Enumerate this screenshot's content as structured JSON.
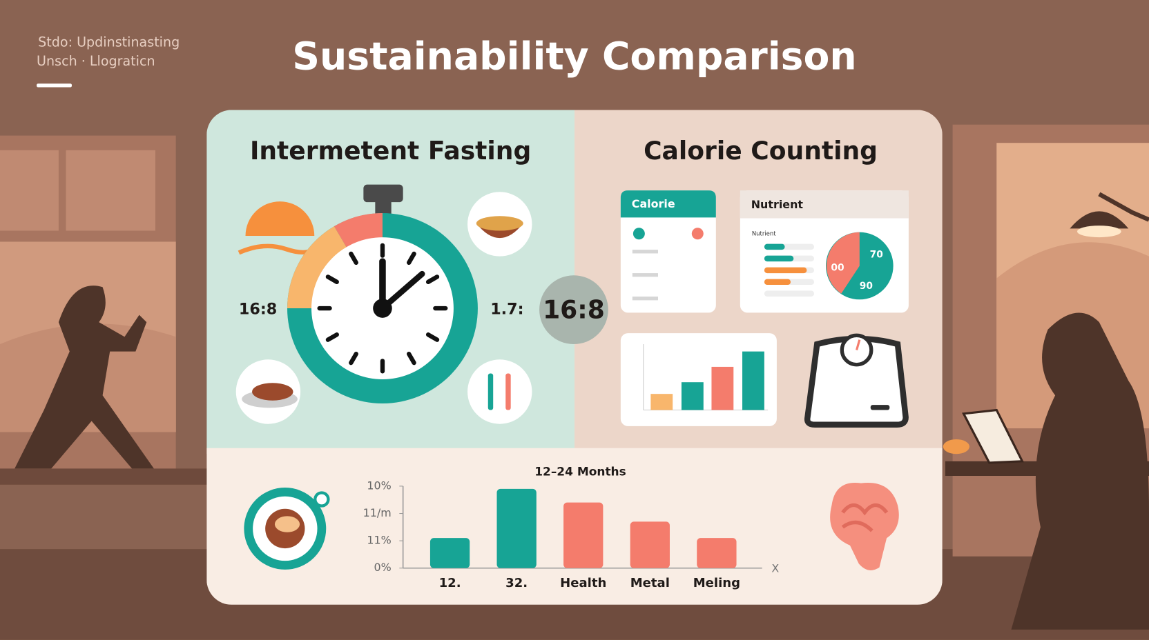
{
  "header": {
    "subtitle_lines": [
      "Stdo: Updinstinasting",
      "Unsch · Llograticn"
    ],
    "title": "Sustainability Comparison"
  },
  "left_panel": {
    "title": "Intermetent Fasting",
    "left_label": "16:8",
    "right_label": "1.7:",
    "badge": "16:8"
  },
  "right_panel": {
    "title": "Calorie Counting",
    "calorie_card": {
      "title": "Calorie"
    },
    "nutrient_card": {
      "title": "Nutrient",
      "subtitle": "Nutrient",
      "pie_labels": [
        "70",
        "00",
        "90"
      ]
    }
  },
  "chart_data": {
    "type": "bar",
    "title": "12–24 Months",
    "categories": [
      "12.",
      "32.",
      "Health",
      "Metal",
      "Meling"
    ],
    "values": [
      1.1,
      2.9,
      2.4,
      1.7,
      1.1
    ],
    "colors": [
      "#17a495",
      "#17a495",
      "#f47c6c",
      "#f47c6c",
      "#f47c6c"
    ],
    "ylim": [
      0,
      3
    ],
    "yticks": [
      {
        "value": 0,
        "label": "0%"
      },
      {
        "value": 1,
        "label": "11%"
      },
      {
        "value": 2,
        "label": "11/m"
      },
      {
        "value": 3,
        "label": "10%"
      }
    ],
    "x_axis_label": "X"
  }
}
